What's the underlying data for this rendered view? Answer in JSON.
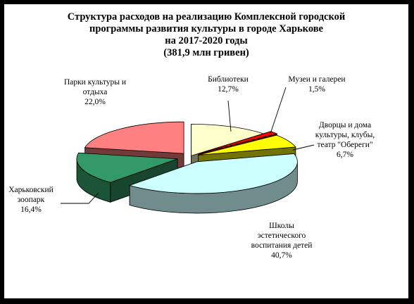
{
  "chart_data": {
    "type": "pie",
    "title_lines": [
      "Структура расходов на реализацию Комплексной городской",
      "программы развития культуры в городе Харькове",
      "на 2017-2020 годы",
      "(381,9 млн гривен)"
    ],
    "slices": [
      {
        "name_lines": [
          "Библиотеки"
        ],
        "value_label": "12,7%",
        "value": 12.7,
        "color": "#FFFFCC"
      },
      {
        "name_lines": [
          "Музеи и галереи"
        ],
        "value_label": "1,5%",
        "value": 1.5,
        "color": "#FF0000"
      },
      {
        "name_lines": [
          "Дворцы и дома",
          "культуры, клубы,",
          "театр  \"Обереги\""
        ],
        "value_label": "6,7%",
        "value": 6.7,
        "color": "#FFFF00"
      },
      {
        "name_lines": [
          "Школы",
          "эстетического",
          "воспитания детей"
        ],
        "value_label": "40,7%",
        "value": 40.7,
        "color": "#CCFFFF"
      },
      {
        "name_lines": [
          "Харьковский",
          "зоопарк"
        ],
        "value_label": "16,4%",
        "value": 16.4,
        "color": "#339966"
      },
      {
        "name_lines": [
          "Парки культуры и",
          "отдыха"
        ],
        "value_label": "22,0%",
        "value": 22.0,
        "color": "#FF8080"
      }
    ]
  }
}
